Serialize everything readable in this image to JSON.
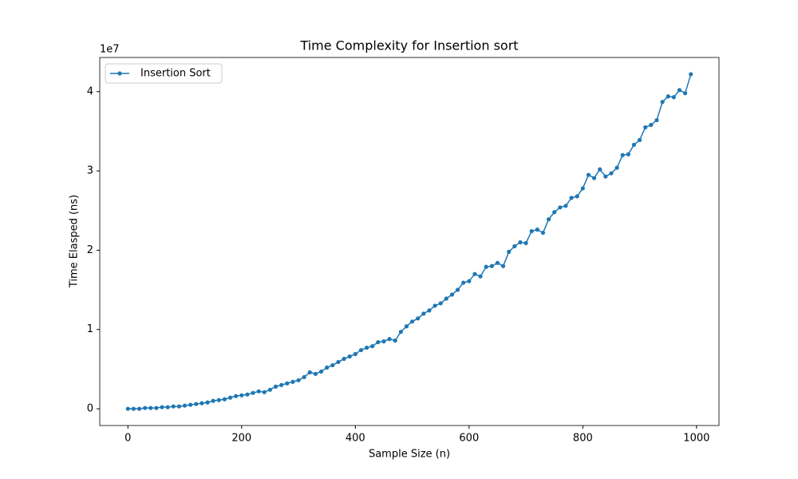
{
  "chart_data": {
    "type": "line",
    "title": "Time Complexity for Insertion sort",
    "x_label": "Sample Size (n)",
    "y_label": "Time Elasped (ns)",
    "y_offset_label": "1e7",
    "x": [
      0,
      10,
      20,
      30,
      40,
      50,
      60,
      70,
      80,
      90,
      100,
      110,
      120,
      130,
      140,
      150,
      160,
      170,
      180,
      190,
      200,
      210,
      220,
      230,
      240,
      250,
      260,
      270,
      280,
      290,
      300,
      310,
      320,
      330,
      340,
      350,
      360,
      370,
      380,
      390,
      400,
      410,
      420,
      430,
      440,
      450,
      460,
      470,
      480,
      490,
      500,
      510,
      520,
      530,
      540,
      550,
      560,
      570,
      580,
      590,
      600,
      610,
      620,
      630,
      640,
      650,
      660,
      670,
      680,
      690,
      700,
      710,
      720,
      730,
      740,
      750,
      760,
      770,
      780,
      790,
      800,
      810,
      820,
      830,
      840,
      850,
      860,
      870,
      880,
      890,
      900,
      910,
      920,
      930,
      940,
      950,
      960,
      970,
      980,
      990
    ],
    "series": [
      {
        "name": "Insertion Sort",
        "color": "#1f77b4",
        "values": [
          0,
          0.0,
          0.0,
          0.01,
          0.01,
          0.01,
          0.02,
          0.02,
          0.03,
          0.03,
          0.04,
          0.05,
          0.06,
          0.07,
          0.08,
          0.1,
          0.11,
          0.12,
          0.14,
          0.16,
          0.17,
          0.18,
          0.2,
          0.22,
          0.21,
          0.24,
          0.28,
          0.3,
          0.32,
          0.34,
          0.36,
          0.4,
          0.46,
          0.44,
          0.47,
          0.52,
          0.55,
          0.59,
          0.63,
          0.66,
          0.69,
          0.74,
          0.77,
          0.79,
          0.84,
          0.85,
          0.88,
          0.86,
          0.97,
          1.04,
          1.1,
          1.14,
          1.2,
          1.24,
          1.3,
          1.33,
          1.39,
          1.44,
          1.5,
          1.59,
          1.61,
          1.7,
          1.67,
          1.79,
          1.8,
          1.84,
          1.8,
          1.98,
          2.05,
          2.1,
          2.09,
          2.24,
          2.26,
          2.22,
          2.39,
          2.48,
          2.54,
          2.56,
          2.66,
          2.68,
          2.78,
          2.95,
          2.91,
          3.02,
          2.93,
          2.97,
          3.04,
          3.2,
          3.21,
          3.33,
          3.39,
          3.55,
          3.58,
          3.64,
          3.87,
          3.94,
          3.93,
          4.02,
          3.98,
          4.22
        ]
      }
    ],
    "xlim": [
      -49.5,
      1039.5
    ],
    "xticks": [
      0,
      200,
      400,
      600,
      800,
      1000
    ],
    "ylim": [
      -0.211,
      4.431
    ],
    "yticks": [
      0,
      1,
      2,
      3,
      4
    ],
    "grid": false,
    "legend": "upper left",
    "marker": true
  }
}
